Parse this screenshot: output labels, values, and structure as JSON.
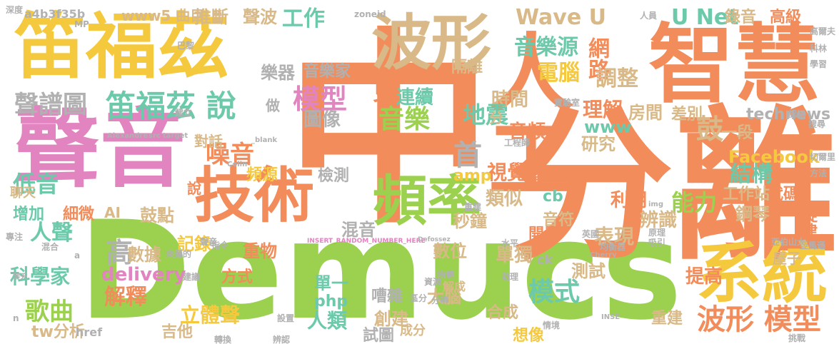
{
  "colors": {
    "orange": "#f28c5b",
    "green": "#9bd14e",
    "yellow": "#f5c93e",
    "pink": "#e184c0",
    "tan": "#d8b987",
    "teal": "#6cc9a9",
    "gray": "#b1b1b1",
    "blue": "#8fa9db",
    "background": "#ffffff"
  },
  "words": [
    {
      "text": "Demucs",
      "color": "green"
    },
    {
      "text": "中",
      "color": "orange"
    },
    {
      "text": "分離",
      "color": "orange"
    },
    {
      "text": "聲音",
      "color": "pink"
    },
    {
      "text": "智慧",
      "color": "orange"
    },
    {
      "text": "人工",
      "color": "orange"
    },
    {
      "text": "笛福茲",
      "color": "yellow"
    },
    {
      "text": "技術",
      "color": "orange"
    },
    {
      "text": "系統",
      "color": "yellow"
    },
    {
      "text": "波形",
      "color": "tan"
    },
    {
      "text": "頻率",
      "color": "green"
    },
    {
      "text": "笛福茲 說",
      "color": "teal"
    },
    {
      "text": "聲譜圖",
      "color": "gray"
    },
    {
      "text": "工作",
      "color": "teal"
    },
    {
      "text": "Wave U",
      "color": "tan"
    },
    {
      "text": "U Net",
      "color": "teal"
    },
    {
      "text": "音樂源",
      "color": "teal"
    },
    {
      "text": "電腦",
      "color": "yellow"
    },
    {
      "text": "網路",
      "color": "orange"
    },
    {
      "text": "調整",
      "color": "tan"
    },
    {
      "text": "模型",
      "color": "pink"
    },
    {
      "text": "更",
      "color": "orange"
    },
    {
      "text": "連續",
      "color": "teal"
    },
    {
      "text": "音樂",
      "color": "green"
    },
    {
      "text": "圖像",
      "color": "gray"
    },
    {
      "text": "時間",
      "color": "tan"
    },
    {
      "text": "理解",
      "color": "orange"
    },
    {
      "text": "房間",
      "color": "tan"
    },
    {
      "text": "首",
      "color": "gray"
    },
    {
      "text": "地震",
      "color": "teal"
    },
    {
      "text": "噪音",
      "color": "orange"
    },
    {
      "text": "www",
      "color": "teal"
    },
    {
      "text": "technews",
      "color": "gray"
    },
    {
      "text": "差別",
      "color": "tan"
    },
    {
      "text": "鼓",
      "color": "tan"
    },
    {
      "text": "一段",
      "color": "tan"
    },
    {
      "text": "研究",
      "color": "tan"
    },
    {
      "text": "音頻",
      "color": "orange"
    },
    {
      "text": "Facebook",
      "color": "yellow"
    },
    {
      "text": "視覺",
      "color": "orange"
    },
    {
      "text": "amp",
      "color": "yellow"
    },
    {
      "text": "結構",
      "color": "teal"
    },
    {
      "text": "頻源",
      "color": "yellow"
    },
    {
      "text": "檢測",
      "color": "gray"
    },
    {
      "text": "說",
      "color": "orange"
    },
    {
      "text": "低音",
      "color": "teal"
    },
    {
      "text": "人聲",
      "color": "teal"
    },
    {
      "text": "增加",
      "color": "teal"
    },
    {
      "text": "細微",
      "color": "orange"
    },
    {
      "text": "AI",
      "color": "tan"
    },
    {
      "text": "鼓點",
      "color": "tan"
    },
    {
      "text": "cb",
      "color": "teal"
    },
    {
      "text": "利用",
      "color": "orange"
    },
    {
      "text": "能力",
      "color": "green"
    },
    {
      "text": "工作站",
      "color": "tan"
    },
    {
      "text": "代碼",
      "color": "orange"
    },
    {
      "text": "辨識",
      "color": "tan"
    },
    {
      "text": "鋼琴",
      "color": "tan"
    },
    {
      "text": "旋律",
      "color": "orange"
    },
    {
      "text": "類似",
      "color": "tan"
    },
    {
      "text": "音符",
      "color": "tan"
    },
    {
      "text": "混音",
      "color": "gray"
    },
    {
      "text": "秒鐘",
      "color": "tan"
    },
    {
      "text": "開發",
      "color": "orange"
    },
    {
      "text": "表現",
      "color": "tan"
    },
    {
      "text": "高",
      "color": "gray"
    },
    {
      "text": "數據",
      "color": "tan"
    },
    {
      "text": "記錄",
      "color": "yellow"
    },
    {
      "text": "重物",
      "color": "orange"
    },
    {
      "text": "數位",
      "color": "tan"
    },
    {
      "text": "單獨",
      "color": "tan"
    },
    {
      "text": "科學家",
      "color": "teal"
    },
    {
      "text": "delivery",
      "color": "pink"
    },
    {
      "text": "歌曲",
      "color": "green"
    },
    {
      "text": "解釋",
      "color": "orange"
    },
    {
      "text": "方式",
      "color": "orange"
    },
    {
      "text": "單一",
      "color": "teal"
    },
    {
      "text": "嘈雜",
      "color": "gray"
    },
    {
      "text": "php",
      "color": "teal"
    },
    {
      "text": "大腦",
      "color": "tan"
    },
    {
      "text": "創建",
      "color": "tan"
    },
    {
      "text": "合成",
      "color": "tan"
    },
    {
      "text": "測試",
      "color": "tan"
    },
    {
      "text": "提高",
      "color": "orange"
    },
    {
      "text": "模式",
      "color": "teal"
    },
    {
      "text": "波形 模型",
      "color": "orange"
    },
    {
      "text": "立體聲",
      "color": "yellow"
    },
    {
      "text": "人類",
      "color": "teal"
    },
    {
      "text": "試圖",
      "color": "gray"
    },
    {
      "text": "重建",
      "color": "tan"
    },
    {
      "text": "想像",
      "color": "yellow"
    },
    {
      "text": "吉他",
      "color": "tan"
    },
    {
      "text": "tw分析",
      "color": "tan"
    },
    {
      "text": "樂器",
      "color": "gray"
    },
    {
      "text": "音樂家",
      "color": "gray"
    },
    {
      "text": "聲波",
      "color": "tan"
    },
    {
      "text": "www5 曲目",
      "color": "tan"
    },
    {
      "text": "推斷",
      "color": "tan"
    },
    {
      "text": "錄音",
      "color": "tan"
    },
    {
      "text": "高級",
      "color": "orange"
    },
    {
      "text": "隔離",
      "color": "tan"
    },
    {
      "text": "a4b3f35b",
      "color": "gray"
    },
    {
      "text": "做",
      "color": "gray"
    },
    {
      "text": "分",
      "color": "tan"
    },
    {
      "text": "裡",
      "color": "orange"
    },
    {
      "text": "ck",
      "color": "gray"
    },
    {
      "text": "href",
      "color": "gray"
    },
    {
      "text": "聊天",
      "color": "tan"
    },
    {
      "text": "MP",
      "color": "gray"
    },
    {
      "text": "zoneid",
      "color": "gray"
    },
    {
      "text": "Alexandre",
      "color": "gray"
    },
    {
      "text": "target",
      "color": "gray"
    },
    {
      "text": "src",
      "color": "gray"
    },
    {
      "text": "Colin",
      "color": "gray"
    },
    {
      "text": "_blank",
      "color": "gray"
    },
    {
      "text": "INSERT_RANDOM_NUMBER_HERE",
      "color": "pink"
    },
    {
      "text": "Defossez",
      "color": "gray"
    },
    {
      "text": "Cherry",
      "color": "gray"
    },
    {
      "text": "INSE",
      "color": "gray"
    },
    {
      "text": "img",
      "color": "gray"
    },
    {
      "text": "屋子",
      "color": "tan"
    },
    {
      "text": "對話",
      "color": "tan"
    },
    {
      "text": "解成",
      "color": "tan"
    },
    {
      "text": "成分",
      "color": "tan"
    },
    {
      "text": "水平",
      "color": "gray"
    },
    {
      "text": "均衡器",
      "color": "gray"
    },
    {
      "text": "英國",
      "color": "gray"
    },
    {
      "text": "原理",
      "color": "gray"
    },
    {
      "text": "吸引",
      "color": "gray"
    },
    {
      "text": "物體",
      "color": "gray"
    },
    {
      "text": "助理",
      "color": "gray"
    },
    {
      "text": "資源",
      "color": "gray"
    },
    {
      "text": "來源的",
      "color": "gray"
    },
    {
      "text": "亞馬遜",
      "color": "gray"
    },
    {
      "text": "亞伯山大",
      "color": "gray"
    },
    {
      "text": "工程師",
      "color": "gray"
    },
    {
      "text": "人員",
      "color": "gray"
    },
    {
      "text": "聲音",
      "color": "gray"
    },
    {
      "text": "認知",
      "color": "gray"
    },
    {
      "text": "實驗室",
      "color": "gray"
    },
    {
      "text": "搜尋",
      "color": "gray"
    },
    {
      "text": "重建",
      "color": "gray"
    },
    {
      "text": "建立",
      "color": "gray"
    },
    {
      "text": "巴黎",
      "color": "gray"
    },
    {
      "text": "科林",
      "color": "gray"
    },
    {
      "text": "學習",
      "color": "gray"
    },
    {
      "text": "高爾夫",
      "color": "gray"
    },
    {
      "text": "切爾里",
      "color": "gray"
    },
    {
      "text": "方法",
      "color": "gray"
    },
    {
      "text": "聊天",
      "color": "gray"
    },
    {
      "text": "挑戰",
      "color": "gray"
    },
    {
      "text": "深度",
      "color": "gray"
    },
    {
      "text": "專注",
      "color": "gray"
    },
    {
      "text": "混合",
      "color": "gray"
    },
    {
      "text": "建議",
      "color": "gray"
    },
    {
      "text": "指令",
      "color": "gray"
    },
    {
      "text": "辨認",
      "color": "gray"
    },
    {
      "text": "轉換",
      "color": "gray"
    },
    {
      "text": "設置",
      "color": "gray"
    },
    {
      "text": "區分",
      "color": "gray"
    },
    {
      "text": "分辨",
      "color": "gray"
    },
    {
      "text": "情境",
      "color": "gray"
    },
    {
      "text": "a",
      "color": "gray"
    },
    {
      "text": "n",
      "color": "gray"
    }
  ]
}
